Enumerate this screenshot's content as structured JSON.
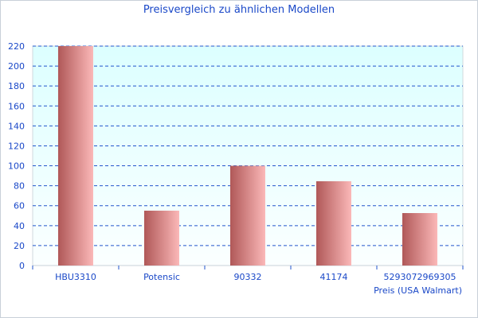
{
  "chart_data": {
    "type": "bar",
    "title": "Preisvergleich zu ähnlichen Modellen",
    "categories": [
      "HBU3310",
      "Potensic",
      "90332",
      "41174",
      "5293072969305"
    ],
    "series": [
      {
        "name": "Preis (USA Walmart)",
        "values": [
          220,
          55,
          100,
          84.5,
          52.6
        ]
      }
    ],
    "xlabel": "Preis (USA Walmart)",
    "ylabel": "",
    "ylim": [
      0,
      220
    ],
    "yticks": [
      0,
      20,
      40,
      60,
      80,
      100,
      120,
      140,
      160,
      180,
      200,
      220
    ],
    "grid": true,
    "colors": {
      "bar_dark": "#b05858",
      "bar_light": "#fbb8b8",
      "grid": "#2255cc",
      "text": "#1a48c8",
      "bg_top": "#dcffff",
      "bg_bottom": "#fbffff"
    }
  }
}
